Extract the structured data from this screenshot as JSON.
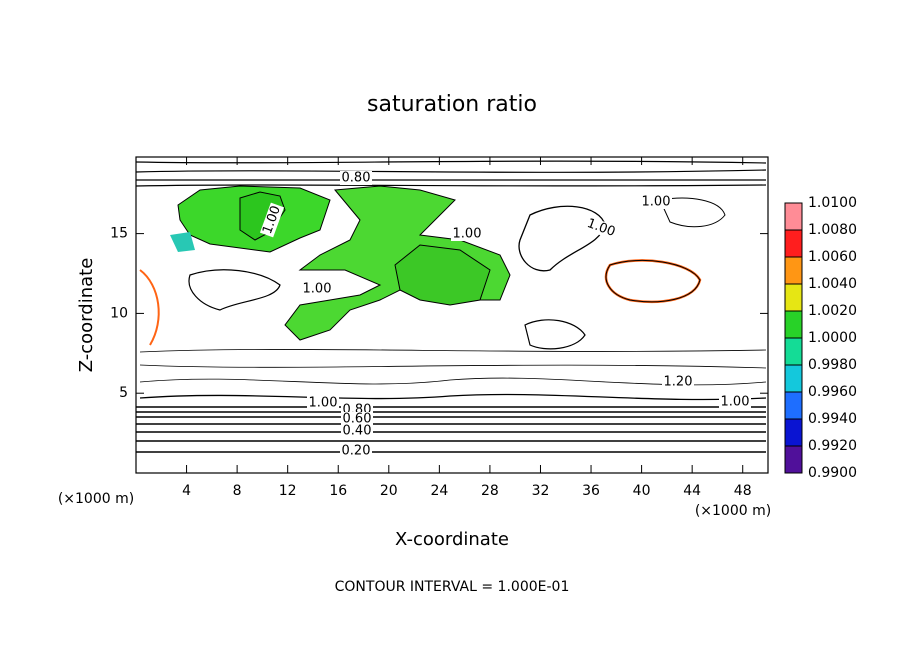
{
  "chart_data": {
    "type": "contour",
    "title": "saturation ratio",
    "x_label": "X-coordinate",
    "y_label": "Z-coordinate",
    "x_unit_label": "(×1000 m)",
    "note": "CONTOUR INTERVAL = 1.000E-01",
    "xlim": [
      0,
      50
    ],
    "xticks": [
      4,
      8,
      12,
      16,
      20,
      24,
      28,
      32,
      36,
      40,
      44,
      48
    ],
    "ylim": [
      0,
      19.8
    ],
    "yticks": [
      5,
      10,
      15
    ],
    "colorbar": {
      "clim": [
        0.99,
        1.01
      ],
      "ticks": [
        {
          "value": 0.99,
          "label": "0.9900"
        },
        {
          "value": 0.992,
          "label": "0.9920"
        },
        {
          "value": 0.994,
          "label": "0.9940"
        },
        {
          "value": 0.996,
          "label": "0.9960"
        },
        {
          "value": 0.998,
          "label": "0.9980"
        },
        {
          "value": 1.0,
          "label": "1.0000"
        },
        {
          "value": 1.002,
          "label": "1.0020"
        },
        {
          "value": 1.004,
          "label": "1.0040"
        },
        {
          "value": 1.006,
          "label": "1.0060"
        },
        {
          "value": 1.008,
          "label": "1.0080"
        },
        {
          "value": 1.01,
          "label": "1.0100"
        }
      ],
      "colors": [
        "#50109a",
        "#0a14d2",
        "#1e6eff",
        "#14c8dc",
        "#14dc96",
        "#28d228",
        "#e6e614",
        "#ff9614",
        "#ff1e1e",
        "#ff8c96"
      ]
    },
    "contour_labels": [
      "0.80",
      "1.00",
      "1.00",
      "1.00",
      "1.00",
      "1.00",
      "1.20",
      "1.00",
      "1.00",
      "0.80",
      "0.60",
      "0.40",
      "0.20"
    ]
  }
}
